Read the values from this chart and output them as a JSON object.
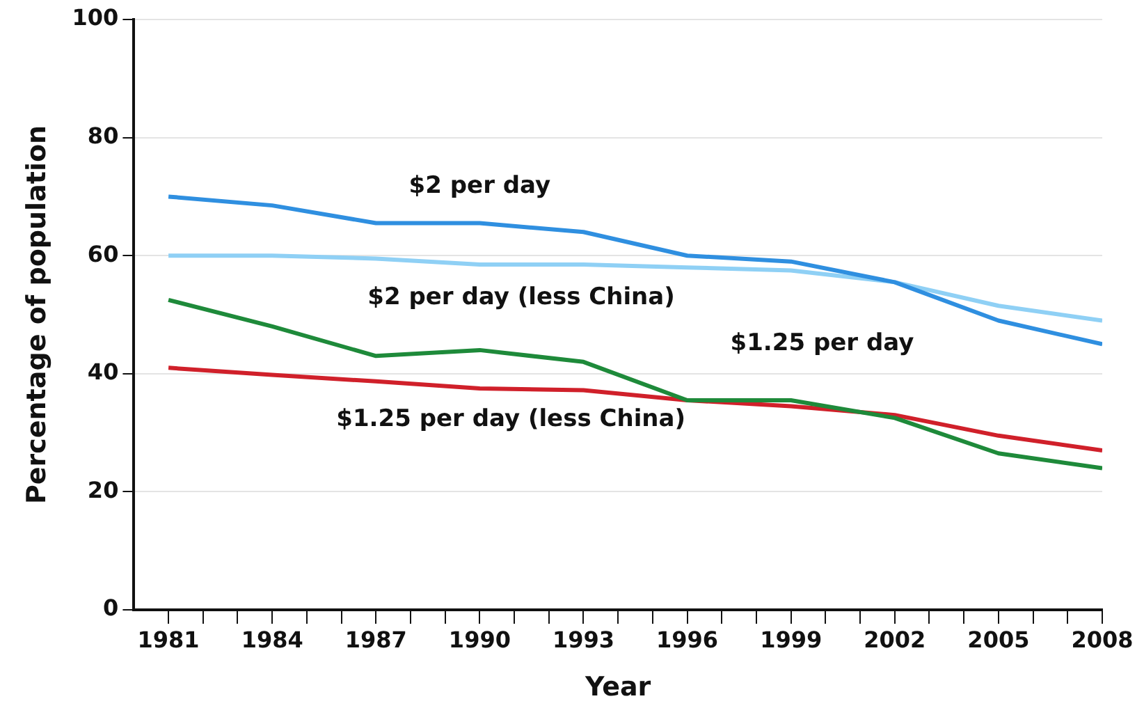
{
  "chart_data": {
    "type": "line",
    "xlabel": "Year",
    "ylabel": "Percentage of population",
    "x": [
      1981,
      1984,
      1987,
      1990,
      1993,
      1996,
      1999,
      2002,
      2005,
      2008
    ],
    "series": [
      {
        "name": "$2 per day",
        "color": "#2f8fe0",
        "values": [
          70,
          68.5,
          65.5,
          65.5,
          64,
          60,
          59,
          55.5,
          49,
          45
        ]
      },
      {
        "name": "$2 per day (less China)",
        "color": "#8fd0f5",
        "values": [
          60,
          60,
          59.5,
          58.5,
          58.5,
          58,
          57.5,
          55.5,
          51.5,
          49
        ]
      },
      {
        "name": "$1.25 per day",
        "color": "#1e8a3a",
        "values": [
          52.5,
          48,
          43,
          44,
          42,
          35.5,
          35.5,
          32.5,
          26.5,
          24
        ]
      },
      {
        "name": "$1.25 per day (less China)",
        "color": "#d0202a",
        "values": [
          41,
          39.8,
          38.7,
          37.5,
          37.2,
          35.5,
          34.5,
          33,
          29.5,
          27
        ]
      }
    ],
    "xlim": [
      1980,
      2008
    ],
    "xticks": [
      1981,
      {
        "value": 1982,
        "label": null
      },
      {
        "value": 1983,
        "label": null
      },
      1984,
      {
        "value": 1985,
        "label": null
      },
      {
        "value": 1986,
        "label": null
      },
      1987,
      {
        "value": 1988,
        "label": null
      },
      {
        "value": 1989,
        "label": null
      },
      1990,
      {
        "value": 1991,
        "label": null
      },
      {
        "value": 1992,
        "label": null
      },
      1993,
      {
        "value": 1994,
        "label": null
      },
      {
        "value": 1995,
        "label": null
      },
      1996,
      {
        "value": 1997,
        "label": null
      },
      {
        "value": 1998,
        "label": null
      },
      1999,
      {
        "value": 2000,
        "label": null
      },
      {
        "value": 2001,
        "label": null
      },
      2002,
      {
        "value": 2003,
        "label": null
      },
      {
        "value": 2004,
        "label": null
      },
      2005,
      {
        "value": 2006,
        "label": null
      },
      {
        "value": 2007,
        "label": null
      },
      2008
    ],
    "ylim": [
      0,
      100
    ],
    "yticks": [
      0,
      20,
      40,
      60,
      80,
      100
    ],
    "grid": "y",
    "marker": "none",
    "line_style": "solid",
    "legend": false
  }
}
